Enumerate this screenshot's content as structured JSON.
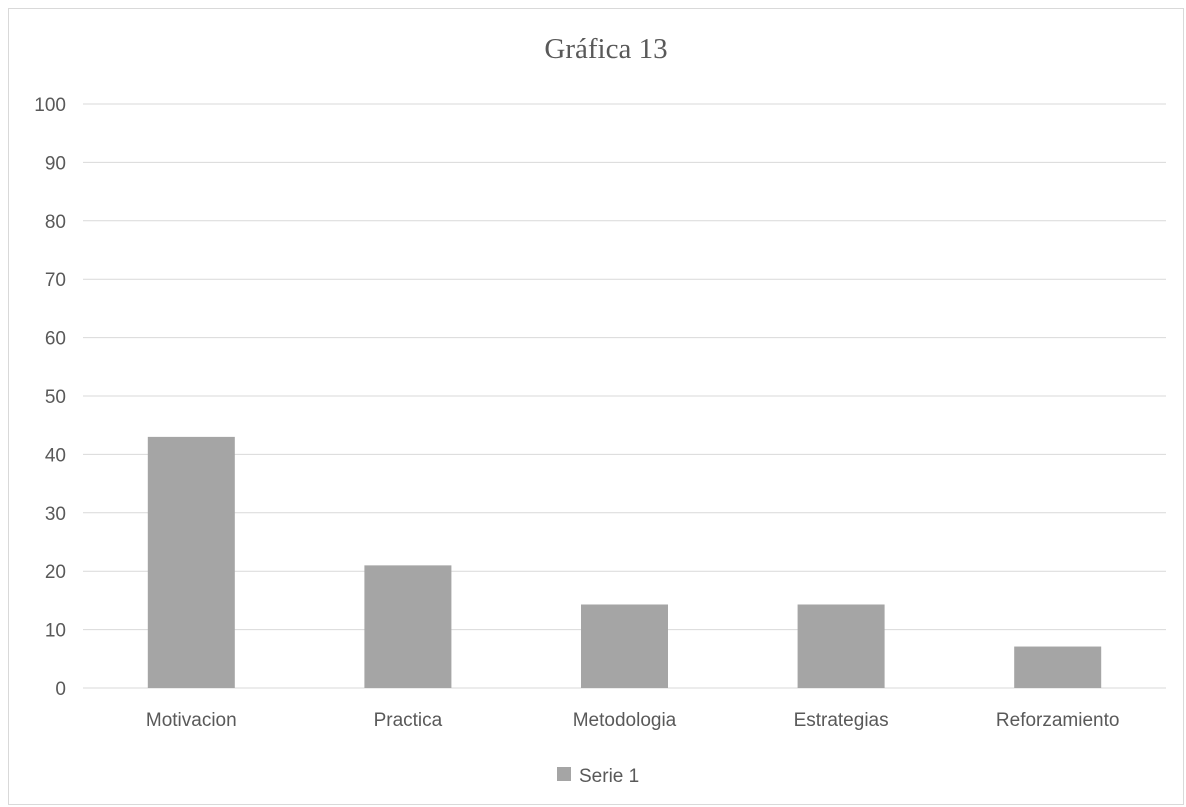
{
  "chart_data": {
    "type": "bar",
    "title": "Gráfica 13",
    "xlabel": "",
    "ylabel": "",
    "categories": [
      "Motivacion",
      "Practica",
      "Metodologia",
      "Estrategias",
      "Reforzamiento"
    ],
    "series": [
      {
        "name": "Serie 1",
        "values": [
          43,
          21,
          14.3,
          14.3,
          7.1
        ],
        "color": "#a5a5a5"
      }
    ],
    "ylim": [
      0,
      100
    ],
    "yticks": [
      0,
      10,
      20,
      30,
      40,
      50,
      60,
      70,
      80,
      90,
      100
    ],
    "grid": true,
    "legend_position": "bottom",
    "colors": {
      "gridline": "#d9d9d9",
      "text": "#595959",
      "bar": "#a5a5a5"
    }
  }
}
